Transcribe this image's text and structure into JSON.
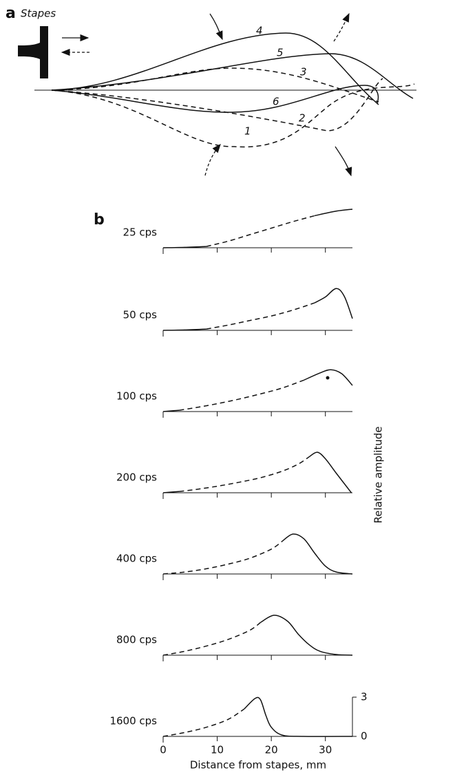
{
  "diagram": {
    "label": "a",
    "stapes": "Stapes",
    "wave_labels": [
      "4",
      "5",
      "3",
      "6",
      "2",
      "1"
    ]
  },
  "chart_data": {
    "type": "line",
    "label": "b",
    "xlabel": "Distance from stapes, mm",
    "ylabel": "Relative amplitude",
    "xlim": [
      0,
      35
    ],
    "xticks": [
      0,
      10,
      20,
      30
    ],
    "ylim": [
      0,
      3
    ],
    "yticks": [
      0,
      3
    ],
    "panels": [
      {
        "name": "25 cps",
        "x": [
          0,
          4,
          8,
          12,
          16,
          20,
          24,
          28,
          32,
          35
        ],
        "solid": [
          0,
          0.03,
          0.1,
          null,
          null,
          null,
          null,
          2.45,
          2.8,
          2.95
        ],
        "dashed": [
          null,
          null,
          0.1,
          0.5,
          1.0,
          1.5,
          2.0,
          2.45,
          null,
          null
        ]
      },
      {
        "name": "50 cps",
        "x": [
          0,
          4,
          8,
          12,
          16,
          20,
          24,
          28,
          30,
          32,
          33.5,
          35
        ],
        "solid": [
          0,
          0.03,
          0.1,
          null,
          null,
          null,
          null,
          2.1,
          2.55,
          3.2,
          2.6,
          0.9
        ],
        "dashed": [
          null,
          null,
          0.1,
          0.4,
          0.75,
          1.1,
          1.55,
          2.1,
          null,
          null,
          null,
          null
        ]
      },
      {
        "name": "100 cps",
        "x": [
          0,
          3,
          6,
          10,
          14,
          18,
          22,
          26,
          29,
          31,
          33,
          35
        ],
        "solid": [
          0,
          0.1,
          null,
          null,
          null,
          null,
          null,
          2.4,
          2.95,
          3.2,
          2.9,
          2.0
        ],
        "dashed": [
          null,
          0.1,
          0.3,
          0.6,
          0.95,
          1.35,
          1.8,
          2.4,
          null,
          null,
          null,
          null
        ]
      },
      {
        "name": "200 cps",
        "x": [
          0,
          3,
          6,
          10,
          14,
          18,
          22,
          25,
          27,
          28.5,
          30,
          32,
          34.8
        ],
        "solid": [
          0,
          0.1,
          null,
          null,
          null,
          null,
          null,
          null,
          2.75,
          3.1,
          2.6,
          1.5,
          0
        ],
        "dashed": [
          null,
          0.1,
          0.25,
          0.5,
          0.8,
          1.15,
          1.65,
          2.2,
          2.75,
          null,
          null,
          null,
          null
        ]
      },
      {
        "name": "400 cps",
        "x": [
          0,
          4,
          8,
          12,
          16,
          20,
          22,
          24,
          26,
          28,
          30,
          32,
          35
        ],
        "solid": [
          null,
          null,
          null,
          null,
          null,
          null,
          2.5,
          3.05,
          2.7,
          1.6,
          0.6,
          0.15,
          0
        ],
        "dashed": [
          0,
          0.15,
          0.4,
          0.75,
          1.2,
          1.9,
          2.5,
          null,
          null,
          null,
          null,
          null,
          null
        ]
      },
      {
        "name": "800 cps",
        "x": [
          0,
          4,
          8,
          12,
          16,
          18,
          20.5,
          23,
          25,
          27,
          29,
          32,
          35
        ],
        "solid": [
          null,
          null,
          null,
          null,
          null,
          2.5,
          3.05,
          2.6,
          1.6,
          0.8,
          0.3,
          0.05,
          0
        ],
        "dashed": [
          0,
          0.3,
          0.7,
          1.2,
          1.9,
          2.5,
          null,
          null,
          null,
          null,
          null,
          null,
          null
        ]
      },
      {
        "name": "1600 cps",
        "x": [
          0,
          4,
          8,
          12,
          15,
          17,
          18,
          19,
          20,
          22,
          26,
          35
        ],
        "solid": [
          null,
          null,
          null,
          null,
          2.1,
          2.9,
          2.8,
          1.6,
          0.7,
          0.1,
          0,
          0
        ],
        "dashed": [
          0,
          0.3,
          0.7,
          1.3,
          2.1,
          null,
          null,
          null,
          null,
          null,
          null,
          null
        ]
      }
    ]
  }
}
